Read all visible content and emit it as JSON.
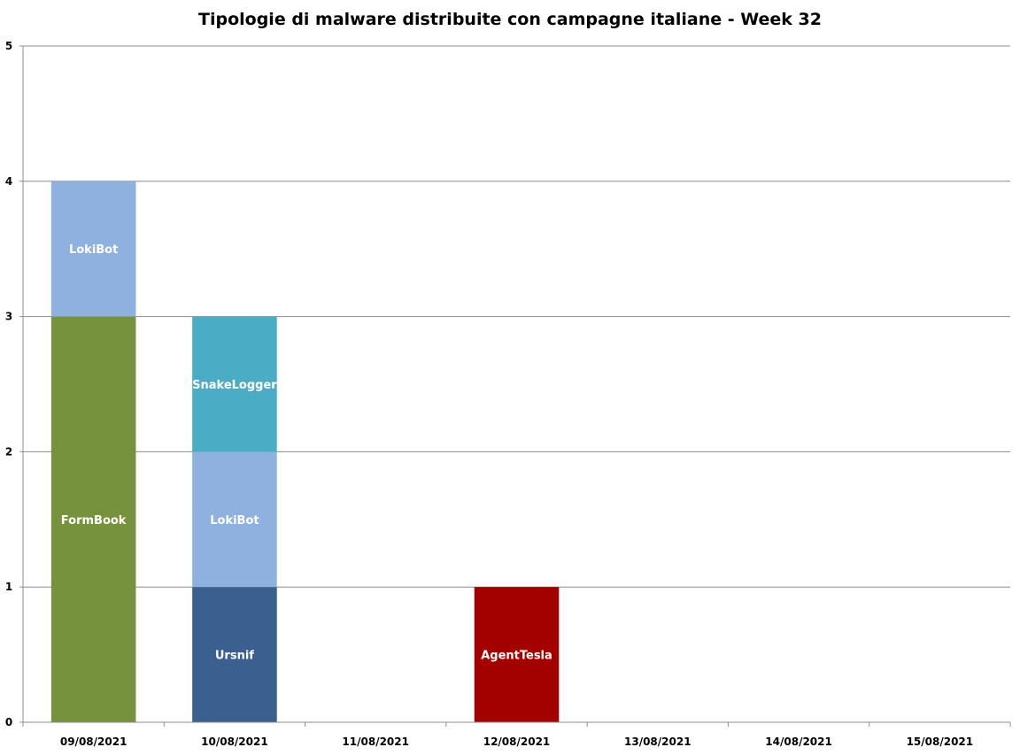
{
  "chart_data": {
    "type": "bar",
    "stacked": true,
    "title": "Tipologie di malware distribuite con campagne italiane - Week 32",
    "xlabel": "",
    "ylabel": "",
    "ylim": [
      0,
      5
    ],
    "yticks": [
      "0",
      "1",
      "2",
      "3",
      "4",
      "5"
    ],
    "grid": true,
    "legend": "none",
    "categories": [
      "09/08/2021",
      "10/08/2021",
      "11/08/2021",
      "12/08/2021",
      "13/08/2021",
      "14/08/2021",
      "15/08/2021"
    ],
    "series": [
      {
        "name": "FormBook",
        "color": "#76923C",
        "values": [
          3,
          0,
          0,
          0,
          0,
          0,
          0
        ]
      },
      {
        "name": "Ursnif",
        "color": "#3B5F8E",
        "values": [
          0,
          1,
          0,
          0,
          0,
          0,
          0
        ]
      },
      {
        "name": "AgentTesla",
        "color": "#A30000",
        "values": [
          0,
          0,
          0,
          1,
          0,
          0,
          0
        ]
      },
      {
        "name": "LokiBot",
        "color": "#8EB1E0",
        "values": [
          1,
          1,
          0,
          0,
          0,
          0,
          0
        ]
      },
      {
        "name": "SnakeLogger",
        "color": "#4BACC6",
        "values": [
          0,
          1,
          0,
          0,
          0,
          0,
          0
        ]
      }
    ]
  }
}
